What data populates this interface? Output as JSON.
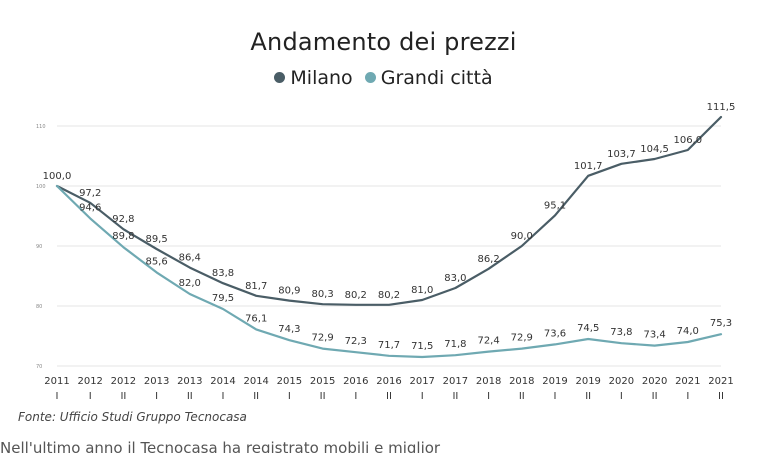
{
  "chart_data": {
    "type": "line",
    "title": "Andamento dei prezzi",
    "legend_position": "top-center",
    "x": [
      {
        "year": "2011",
        "half": "I"
      },
      {
        "year": "2012",
        "half": "I"
      },
      {
        "year": "2012",
        "half": "II"
      },
      {
        "year": "2013",
        "half": "I"
      },
      {
        "year": "2013",
        "half": "II"
      },
      {
        "year": "2014",
        "half": "I"
      },
      {
        "year": "2014",
        "half": "II"
      },
      {
        "year": "2015",
        "half": "I"
      },
      {
        "year": "2015",
        "half": "II"
      },
      {
        "year": "2016",
        "half": "I"
      },
      {
        "year": "2016",
        "half": "II"
      },
      {
        "year": "2017",
        "half": "I"
      },
      {
        "year": "2017",
        "half": "II"
      },
      {
        "year": "2018",
        "half": "I"
      },
      {
        "year": "2018",
        "half": "II"
      },
      {
        "year": "2019",
        "half": "I"
      },
      {
        "year": "2019",
        "half": "II"
      },
      {
        "year": "2020",
        "half": "I"
      },
      {
        "year": "2020",
        "half": "II"
      },
      {
        "year": "2021",
        "half": "I"
      },
      {
        "year": "2021",
        "half": "II"
      }
    ],
    "series": [
      {
        "name": "Milano",
        "color": "#4a5d66",
        "values": [
          100.0,
          97.2,
          92.8,
          89.5,
          86.4,
          83.8,
          81.7,
          80.9,
          80.3,
          80.2,
          80.2,
          81.0,
          83.0,
          86.2,
          90.0,
          95.1,
          101.7,
          103.7,
          104.5,
          106.0,
          111.5
        ],
        "labels": [
          "100,0",
          "97,2",
          "92,8",
          "89,5",
          "86,4",
          "83,8",
          "81,7",
          "80,9",
          "80,3",
          "80,2",
          "80,2",
          "81,0",
          "83,0",
          "86,2",
          "90,0",
          "95,1",
          "101,7",
          "103,7",
          "104,5",
          "106,0",
          "111,5"
        ]
      },
      {
        "name": "Grandi città",
        "color": "#6fa9b2",
        "values": [
          100.0,
          94.6,
          89.8,
          85.6,
          82.0,
          79.5,
          76.1,
          74.3,
          72.9,
          72.3,
          71.7,
          71.5,
          71.8,
          72.4,
          72.9,
          73.6,
          74.5,
          73.8,
          73.4,
          74.0,
          75.3
        ],
        "labels": [
          "",
          "94,6",
          "89,8",
          "85,6",
          "82,0",
          "79,5",
          "76,1",
          "74,3",
          "72,9",
          "72,3",
          "71,7",
          "71,5",
          "71,8",
          "72,4",
          "72,9",
          "73,6",
          "74,5",
          "73,8",
          "73,4",
          "74,0",
          "75,3"
        ]
      }
    ],
    "y_ticks": [
      70,
      80,
      90,
      100,
      110
    ],
    "ylim": [
      70,
      112
    ],
    "grid": true
  },
  "source_note": "Fonte: Ufficio Studi Gruppo Tecnocasa",
  "cut_text": "Nell'ultimo anno il Tecnocasa ha registrato mobili e miglior"
}
